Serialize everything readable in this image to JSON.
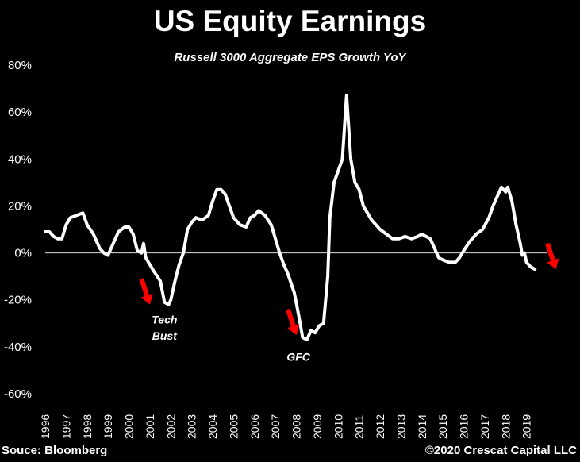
{
  "title": "US Equity Earnings",
  "subtitle": "Russell 3000 Aggregate EPS Growth YoY",
  "source": "Souce: Bloomberg",
  "copyright": "©2020 Crescat  Capital LLC",
  "colors": {
    "background": "#000000",
    "line": "#ffffff",
    "arrow": "#ff0000"
  },
  "chart_data": {
    "type": "line",
    "title": "US Equity Earnings",
    "subtitle": "Russell 3000 Aggregate EPS Growth YoY",
    "ylim": [
      -0.6,
      0.8
    ],
    "yticks": [
      0.8,
      0.6,
      0.4,
      0.2,
      0,
      -0.2,
      -0.4,
      -0.6
    ],
    "ytick_labels": [
      "80%",
      "60%",
      "40%",
      "20%",
      "0%",
      "-20%",
      "-40%",
      "-60%"
    ],
    "xtick_labels": [
      "1996",
      "1997",
      "1998",
      "1999",
      "2000",
      "2001",
      "2002",
      "2003",
      "2004",
      "2005",
      "2006",
      "2007",
      "2008",
      "2009",
      "2010",
      "2011",
      "2012",
      "2013",
      "2014",
      "2015",
      "2016",
      "2017",
      "2018",
      "2019"
    ],
    "grid": false,
    "series": [
      {
        "values": [
          [
            1996.0,
            0.09
          ],
          [
            1996.2,
            0.09
          ],
          [
            1996.4,
            0.07
          ],
          [
            1996.6,
            0.06
          ],
          [
            1996.8,
            0.06
          ],
          [
            1997.0,
            0.12
          ],
          [
            1997.2,
            0.15
          ],
          [
            1997.5,
            0.16
          ],
          [
            1997.8,
            0.17
          ],
          [
            1998.0,
            0.12
          ],
          [
            1998.3,
            0.08
          ],
          [
            1998.6,
            0.02
          ],
          [
            1998.8,
            0.0
          ],
          [
            1999.0,
            -0.01
          ],
          [
            1999.2,
            0.03
          ],
          [
            1999.5,
            0.09
          ],
          [
            1999.8,
            0.11
          ],
          [
            2000.0,
            0.11
          ],
          [
            2000.2,
            0.08
          ],
          [
            2000.4,
            0.01
          ],
          [
            2000.6,
            0.0
          ],
          [
            2000.7,
            0.04
          ],
          [
            2000.8,
            -0.02
          ],
          [
            2001.0,
            -0.05
          ],
          [
            2001.2,
            -0.08
          ],
          [
            2001.5,
            -0.12
          ],
          [
            2001.7,
            -0.21
          ],
          [
            2001.9,
            -0.22
          ],
          [
            2002.0,
            -0.2
          ],
          [
            2002.2,
            -0.12
          ],
          [
            2002.4,
            -0.05
          ],
          [
            2002.6,
            0.0
          ],
          [
            2002.8,
            0.1
          ],
          [
            2003.0,
            0.13
          ],
          [
            2003.2,
            0.15
          ],
          [
            2003.5,
            0.14
          ],
          [
            2003.8,
            0.16
          ],
          [
            2004.0,
            0.22
          ],
          [
            2004.2,
            0.27
          ],
          [
            2004.4,
            0.27
          ],
          [
            2004.6,
            0.25
          ],
          [
            2004.8,
            0.2
          ],
          [
            2005.0,
            0.15
          ],
          [
            2005.3,
            0.12
          ],
          [
            2005.6,
            0.11
          ],
          [
            2005.8,
            0.15
          ],
          [
            2006.0,
            0.16
          ],
          [
            2006.2,
            0.18
          ],
          [
            2006.5,
            0.16
          ],
          [
            2006.8,
            0.12
          ],
          [
            2007.0,
            0.06
          ],
          [
            2007.2,
            0.0
          ],
          [
            2007.4,
            -0.05
          ],
          [
            2007.6,
            -0.09
          ],
          [
            2007.9,
            -0.17
          ],
          [
            2008.1,
            -0.26
          ],
          [
            2008.3,
            -0.36
          ],
          [
            2008.5,
            -0.37
          ],
          [
            2008.7,
            -0.33
          ],
          [
            2008.9,
            -0.34
          ],
          [
            2009.1,
            -0.31
          ],
          [
            2009.3,
            -0.3
          ],
          [
            2009.5,
            -0.1
          ],
          [
            2009.6,
            0.15
          ],
          [
            2009.8,
            0.3
          ],
          [
            2010.0,
            0.35
          ],
          [
            2010.2,
            0.4
          ],
          [
            2010.4,
            0.67
          ],
          [
            2010.6,
            0.4
          ],
          [
            2010.8,
            0.3
          ],
          [
            2011.0,
            0.27
          ],
          [
            2011.2,
            0.2
          ],
          [
            2011.4,
            0.17
          ],
          [
            2011.6,
            0.14
          ],
          [
            2011.8,
            0.12
          ],
          [
            2012.0,
            0.1
          ],
          [
            2012.3,
            0.08
          ],
          [
            2012.6,
            0.06
          ],
          [
            2012.9,
            0.06
          ],
          [
            2013.2,
            0.07
          ],
          [
            2013.5,
            0.06
          ],
          [
            2013.8,
            0.07
          ],
          [
            2014.0,
            0.08
          ],
          [
            2014.2,
            0.07
          ],
          [
            2014.4,
            0.06
          ],
          [
            2014.6,
            0.02
          ],
          [
            2014.8,
            -0.02
          ],
          [
            2015.0,
            -0.03
          ],
          [
            2015.3,
            -0.04
          ],
          [
            2015.6,
            -0.04
          ],
          [
            2015.8,
            -0.02
          ],
          [
            2016.0,
            0.01
          ],
          [
            2016.3,
            0.05
          ],
          [
            2016.6,
            0.08
          ],
          [
            2016.9,
            0.1
          ],
          [
            2017.2,
            0.15
          ],
          [
            2017.4,
            0.2
          ],
          [
            2017.6,
            0.24
          ],
          [
            2017.8,
            0.28
          ],
          [
            2018.0,
            0.26
          ],
          [
            2018.1,
            0.28
          ],
          [
            2018.3,
            0.22
          ],
          [
            2018.5,
            0.12
          ],
          [
            2018.7,
            0.04
          ],
          [
            2018.8,
            -0.01
          ],
          [
            2018.9,
            0.0
          ],
          [
            2019.0,
            -0.04
          ],
          [
            2019.2,
            -0.06
          ],
          [
            2019.4,
            -0.07
          ]
        ]
      }
    ],
    "annotations": [
      {
        "text": "Tech",
        "x": 2001.7,
        "y": -0.3
      },
      {
        "text": "Bust",
        "x": 2001.7,
        "y": -0.37
      },
      {
        "text": "GFC",
        "x": 2008.1,
        "y": -0.46
      }
    ],
    "arrows": [
      {
        "x1": 2000.6,
        "y1": -0.11,
        "x2": 2001.0,
        "y2": -0.22
      },
      {
        "x1": 2007.6,
        "y1": -0.24,
        "x2": 2008.0,
        "y2": -0.35
      },
      {
        "x1": 2020.0,
        "y1": 0.04,
        "x2": 2020.4,
        "y2": -0.07
      }
    ]
  }
}
